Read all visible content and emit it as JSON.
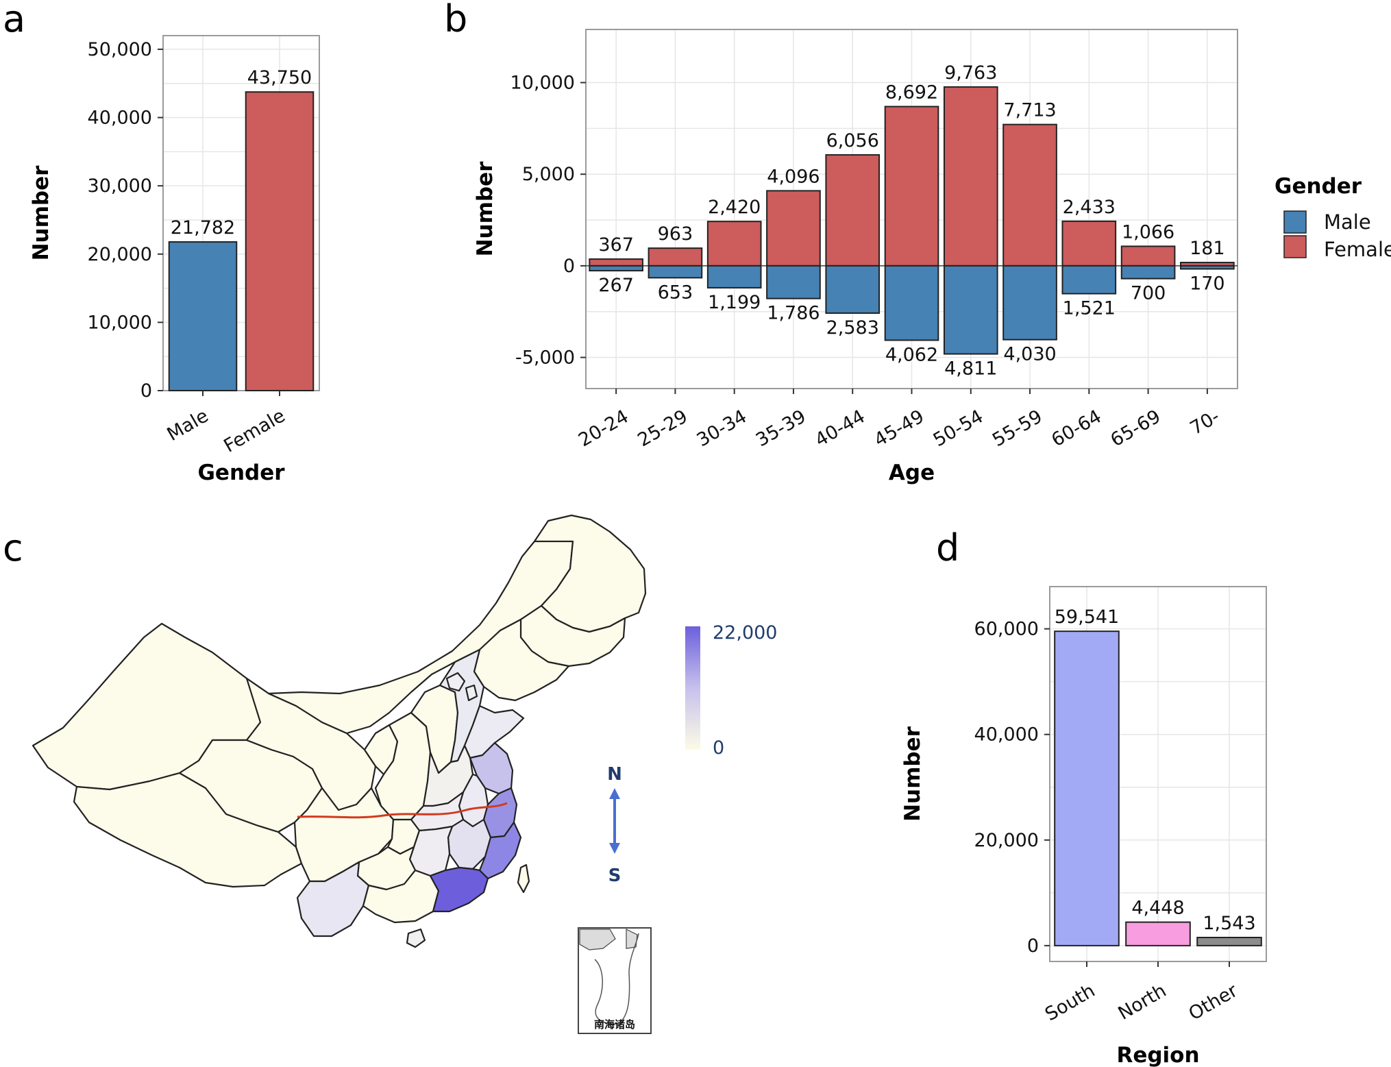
{
  "panels": {
    "a": {
      "letter": "a"
    },
    "b": {
      "letter": "b"
    },
    "c": {
      "letter": "c"
    },
    "d": {
      "letter": "d"
    }
  },
  "map": {
    "scale_max_label": "22,000",
    "scale_min_label": "0",
    "scale_color_high": "#6d5fdc",
    "scale_color_low": "#fdfbe6",
    "compass_north": "N",
    "compass_south": "S",
    "inset_label": "南海诸岛",
    "qinling_line_color": "#d23a1e"
  },
  "colors": {
    "male": "#4682b4",
    "female": "#cd5c5c",
    "south": "#a3aaf5",
    "north": "#f79de0",
    "other": "#8c8c8c"
  },
  "chart_data": [
    {
      "panel": "a",
      "type": "bar",
      "xlabel": "Gender",
      "ylabel": "Number",
      "categories": [
        "Male",
        "Female"
      ],
      "values": [
        21782,
        43750
      ],
      "data_labels": [
        "21,782",
        "43,750"
      ],
      "ylim": [
        0,
        52000
      ],
      "yticks": [
        0,
        10000,
        20000,
        30000,
        40000,
        50000
      ],
      "ytick_labels": [
        "0",
        "10,000",
        "20,000",
        "30,000",
        "40,000",
        "50,000"
      ],
      "grid": true
    },
    {
      "panel": "b",
      "type": "bar",
      "xlabel": "Age",
      "ylabel": "Number",
      "categories": [
        "20-24",
        "25-29",
        "30-34",
        "35-39",
        "40-44",
        "45-49",
        "50-54",
        "55-59",
        "60-64",
        "65-69",
        "70-"
      ],
      "series": [
        {
          "name": "Female",
          "values": [
            367,
            963,
            2420,
            4096,
            6056,
            8692,
            9763,
            7713,
            2433,
            1066,
            181
          ],
          "labels": [
            "367",
            "963",
            "2,420",
            "4,096",
            "6,056",
            "8,692",
            "9,763",
            "7,713",
            "2,433",
            "1,066",
            "181"
          ]
        },
        {
          "name": "Male",
          "values": [
            -267,
            -653,
            -1199,
            -1786,
            -2583,
            -4062,
            -4811,
            -4030,
            -1521,
            -700,
            -170
          ],
          "labels": [
            "267",
            "653",
            "1,199",
            "1,786",
            "2,583",
            "4,062",
            "4,811",
            "4,030",
            "1,521",
            "700",
            "170"
          ]
        }
      ],
      "ylim": [
        -6700,
        12900
      ],
      "yticks": [
        -5000,
        0,
        5000,
        10000
      ],
      "ytick_labels": [
        "-5,000",
        "0",
        "5,000",
        "10,000"
      ],
      "legend": {
        "title": "Gender",
        "entries": [
          "Male",
          "Female"
        ],
        "position": "right"
      },
      "grid": true
    },
    {
      "panel": "d",
      "type": "bar",
      "xlabel": "Region",
      "ylabel": "Number",
      "categories": [
        "South",
        "North",
        "Other"
      ],
      "values": [
        59541,
        4448,
        1543
      ],
      "data_labels": [
        "59,541",
        "4,448",
        "1,543"
      ],
      "ylim": [
        -3000,
        68000
      ],
      "yticks": [
        0,
        20000,
        40000,
        60000
      ],
      "ytick_labels": [
        "0",
        "20,000",
        "40,000",
        "60,000"
      ],
      "grid": true
    }
  ]
}
